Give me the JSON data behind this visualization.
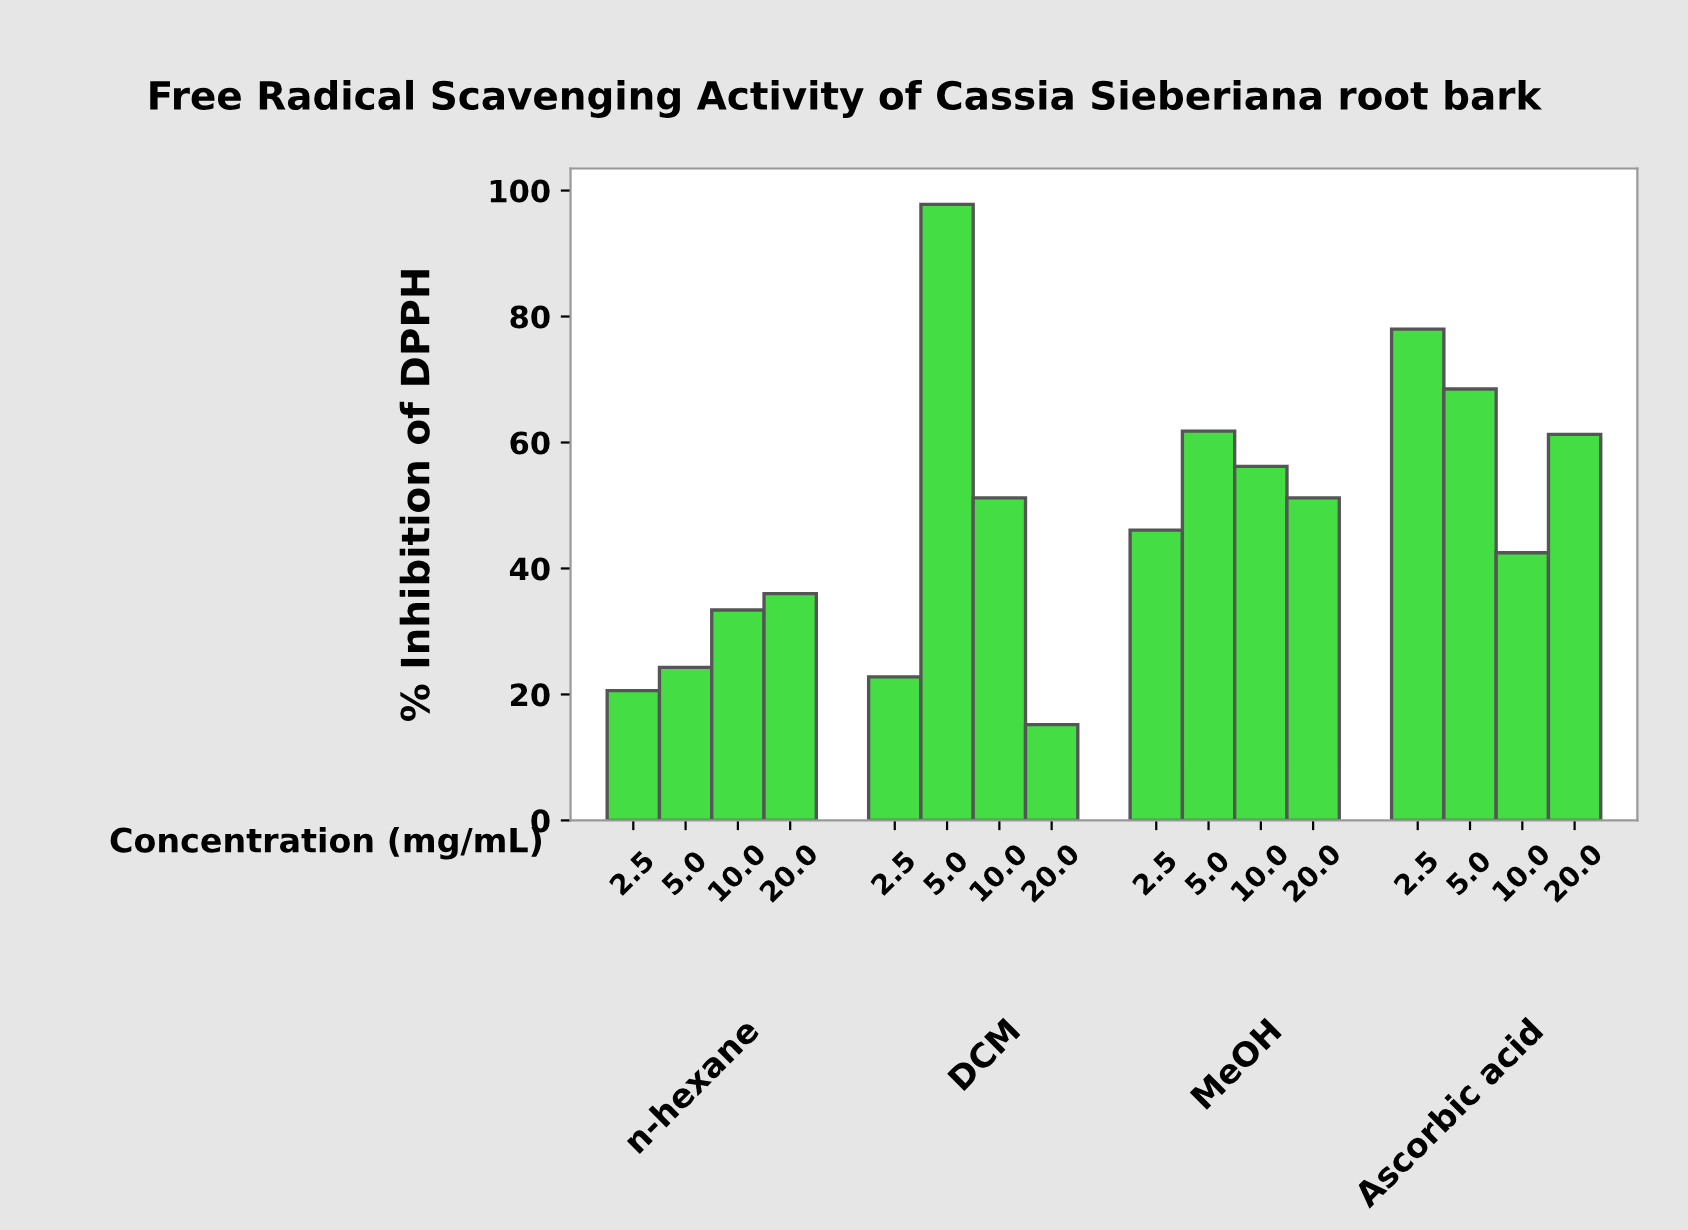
{
  "chart_data": {
    "type": "bar",
    "title": "Free Radical Scavenging Activity of Cassia Sieberiana root bark",
    "xlabel": "Concentration (mg/mL)",
    "ylabel": "% Inhibition of DPPH",
    "categories": [
      "2.5",
      "5.0",
      "10.0",
      "20.0",
      null,
      "2.5",
      "5.0",
      "10.0",
      "20.0",
      null,
      "2.5",
      "5.0",
      "10.0",
      "20.0",
      null,
      "2.5",
      "5.0",
      "10.0",
      "20.0"
    ],
    "annotations": [
      "n-hexane",
      "DCM",
      "MeOH",
      "Ascorbic acid"
    ],
    "values": [
      20.6,
      24.3,
      33.4,
      36.0,
      null,
      22.8,
      97.8,
      51.2,
      15.2,
      null,
      46.1,
      61.8,
      56.2,
      51.2,
      null,
      78.0,
      68.5,
      42.5,
      61.3
    ],
    "color": "#44dd44",
    "ylim": [
      0,
      103.5
    ],
    "yticks": [
      0,
      20,
      40,
      60,
      80,
      100
    ],
    "grid": false,
    "legend": false
  }
}
